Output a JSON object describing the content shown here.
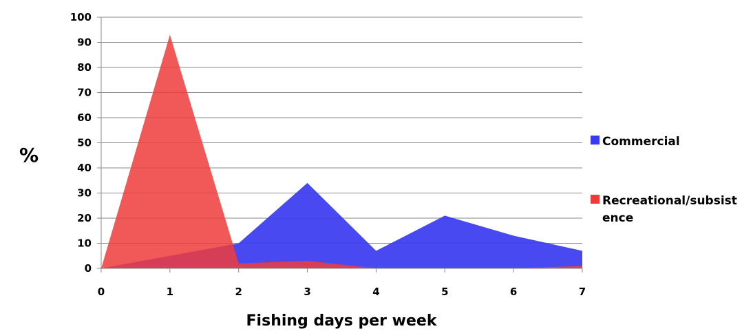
{
  "chart_data": {
    "type": "area",
    "xlabel": "Fishing days per week",
    "ylabel": "%",
    "x": [
      0,
      1,
      2,
      3,
      4,
      5,
      6,
      7
    ],
    "xlim": [
      0,
      7
    ],
    "ylim": [
      0,
      100
    ],
    "yticks": [
      0,
      10,
      20,
      30,
      40,
      50,
      60,
      70,
      80,
      90,
      100
    ],
    "grid": true,
    "legend_position": "right",
    "series": [
      {
        "name": "Commercial",
        "color": "#3a3af0",
        "values": [
          0,
          5,
          10,
          34,
          7,
          21,
          13,
          7
        ]
      },
      {
        "name": "Recreational/subsistence",
        "legend_lines": [
          "Recreational/subsist",
          "ence"
        ],
        "color": "#ee3b3b",
        "values": [
          0,
          93,
          2,
          3,
          0,
          0,
          0,
          1
        ]
      }
    ]
  }
}
